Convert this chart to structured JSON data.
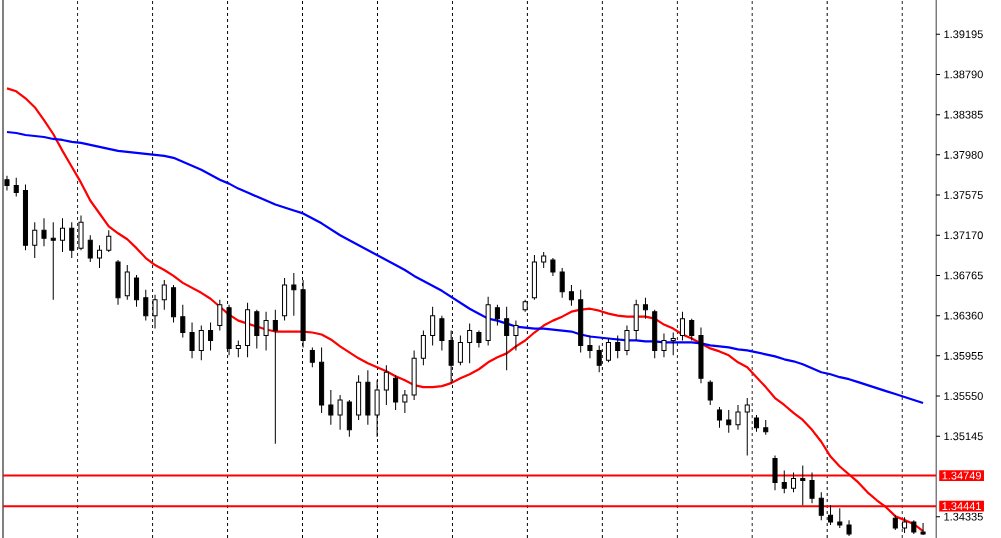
{
  "chart_data": {
    "type": "candlestick",
    "categories": [
      null,
      null,
      null,
      null,
      null,
      null,
      null,
      null,
      null,
      null,
      null,
      null,
      null,
      null,
      null,
      null,
      null,
      null,
      null,
      null,
      null,
      null,
      null,
      null,
      null,
      null,
      null,
      null,
      null,
      null,
      null,
      null,
      null,
      null,
      null,
      null,
      null,
      null,
      null,
      null,
      null,
      null,
      null,
      null,
      null,
      null,
      null,
      null,
      null,
      null,
      null,
      null,
      null,
      null,
      null,
      null,
      null,
      null,
      null,
      null,
      null,
      null,
      null,
      null,
      null,
      null,
      null,
      null,
      null,
      null,
      null,
      null,
      null,
      null,
      null,
      null,
      null,
      null,
      null,
      null,
      null,
      null,
      null,
      null,
      null,
      null,
      null,
      null,
      null,
      null,
      null,
      null,
      null,
      null,
      null,
      null,
      null,
      null,
      null,
      null
    ],
    "color": "#000000",
    "ohlc": [
      [
        1.3773,
        1.3777,
        1.3762,
        1.3767
      ],
      [
        1.3767,
        1.3775,
        1.3756,
        1.376
      ],
      [
        1.3762,
        1.3768,
        1.3702,
        1.3707
      ],
      [
        1.3707,
        1.373,
        1.3694,
        1.3722
      ],
      [
        1.3722,
        1.3734,
        1.3706,
        1.3714
      ],
      [
        1.3714,
        1.373,
        1.3652,
        1.3712
      ],
      [
        1.3712,
        1.3734,
        1.37,
        1.3724
      ],
      [
        1.3724,
        1.373,
        1.3694,
        1.3702
      ],
      [
        1.3704,
        1.3737,
        1.3702,
        1.373
      ],
      [
        1.3712,
        1.3717,
        1.369,
        1.3694
      ],
      [
        1.3694,
        1.3707,
        1.3684,
        1.3702
      ],
      [
        1.3702,
        1.3722,
        1.37,
        1.3716
      ],
      [
        1.369,
        1.3692,
        1.3647,
        1.3654
      ],
      [
        1.3656,
        1.3687,
        1.3652,
        1.368
      ],
      [
        1.3674,
        1.3677,
        1.3645,
        1.3652
      ],
      [
        1.3654,
        1.3662,
        1.3631,
        1.3636
      ],
      [
        1.3636,
        1.3657,
        1.3623,
        1.3652
      ],
      [
        1.3652,
        1.3672,
        1.3642,
        1.3667
      ],
      [
        1.3664,
        1.3667,
        1.3629,
        1.3635
      ],
      [
        1.3635,
        1.3647,
        1.3614,
        1.3619
      ],
      [
        1.3619,
        1.3629,
        1.3593,
        1.3601
      ],
      [
        1.3601,
        1.3626,
        1.3591,
        1.3621
      ],
      [
        1.3621,
        1.3629,
        1.3601,
        1.3611
      ],
      [
        1.3626,
        1.3652,
        1.3621,
        1.3647
      ],
      [
        1.3644,
        1.3647,
        1.3596,
        1.3603
      ],
      [
        1.3603,
        1.3611,
        1.3594,
        1.3606
      ],
      [
        1.3606,
        1.3649,
        1.3594,
        1.3642
      ],
      [
        1.364,
        1.3642,
        1.3603,
        1.3616
      ],
      [
        1.3616,
        1.364,
        1.3601,
        1.3631
      ],
      [
        1.3631,
        1.3642,
        1.3507,
        1.3621
      ],
      [
        1.3636,
        1.3674,
        1.3631,
        1.3667
      ],
      [
        1.3667,
        1.3679,
        1.3636,
        1.3662
      ],
      [
        1.3662,
        1.3672,
        1.3604,
        1.3611
      ],
      [
        1.3601,
        1.3604,
        1.3584,
        1.3589
      ],
      [
        1.3589,
        1.3604,
        1.3538,
        1.3546
      ],
      [
        1.3546,
        1.3561,
        1.3526,
        1.3536
      ],
      [
        1.3536,
        1.3556,
        1.3521,
        1.3551
      ],
      [
        1.3549,
        1.3551,
        1.3514,
        1.3521
      ],
      [
        1.3536,
        1.3576,
        1.3531,
        1.3569
      ],
      [
        1.3569,
        1.3581,
        1.3526,
        1.3536
      ],
      [
        1.3536,
        1.3571,
        1.3514,
        1.3561
      ],
      [
        1.3561,
        1.3586,
        1.3546,
        1.3579
      ],
      [
        1.3573,
        1.3576,
        1.3541,
        1.3549
      ],
      [
        1.3549,
        1.3561,
        1.3538,
        1.3556
      ],
      [
        1.3556,
        1.3601,
        1.3551,
        1.3593
      ],
      [
        1.3593,
        1.3621,
        1.3586,
        1.3616
      ],
      [
        1.3616,
        1.3645,
        1.3606,
        1.3636
      ],
      [
        1.3633,
        1.3636,
        1.3601,
        1.3611
      ],
      [
        1.3611,
        1.3621,
        1.3568,
        1.3586
      ],
      [
        1.3589,
        1.3616,
        1.3586,
        1.3609
      ],
      [
        1.3609,
        1.3628,
        1.3588,
        1.3621
      ],
      [
        1.3619,
        1.3621,
        1.3604,
        1.3609
      ],
      [
        1.3611,
        1.3655,
        1.3606,
        1.3647
      ],
      [
        1.3644,
        1.3647,
        1.3626,
        1.3633
      ],
      [
        1.3633,
        1.3645,
        1.3581,
        1.3616
      ],
      [
        1.3616,
        1.3631,
        1.3601,
        1.3626
      ],
      [
        1.3642,
        1.3652,
        1.364,
        1.365
      ],
      [
        1.3654,
        1.3697,
        1.3652,
        1.369
      ],
      [
        1.369,
        1.37,
        1.3684,
        1.3696
      ],
      [
        1.3692,
        1.3694,
        1.3676,
        1.368
      ],
      [
        1.368,
        1.3684,
        1.3654,
        1.366
      ],
      [
        1.366,
        1.3667,
        1.3646,
        1.3652
      ],
      [
        1.3652,
        1.3662,
        1.3599,
        1.3606
      ],
      [
        1.3606,
        1.3616,
        1.3593,
        1.3601
      ],
      [
        1.3601,
        1.3606,
        1.3579,
        1.3586
      ],
      [
        1.3591,
        1.3613,
        1.3589,
        1.3609
      ],
      [
        1.3609,
        1.3616,
        1.3593,
        1.3601
      ],
      [
        1.3601,
        1.3626,
        1.3596,
        1.3621
      ],
      [
        1.3621,
        1.3652,
        1.3611,
        1.3647
      ],
      [
        1.3647,
        1.3654,
        1.3633,
        1.3642
      ],
      [
        1.364,
        1.3642,
        1.3593,
        1.3601
      ],
      [
        1.3601,
        1.3618,
        1.3594,
        1.3611
      ],
      [
        1.3611,
        1.3619,
        1.3596,
        1.3613
      ],
      [
        1.3616,
        1.364,
        1.3611,
        1.3633
      ],
      [
        1.3631,
        1.3633,
        1.3611,
        1.3616
      ],
      [
        1.3616,
        1.3624,
        1.3568,
        1.3573
      ],
      [
        1.3569,
        1.3571,
        1.3546,
        1.3551
      ],
      [
        1.3541,
        1.3544,
        1.3523,
        1.3531
      ],
      [
        1.3531,
        1.3541,
        1.3518,
        1.3526
      ],
      [
        1.3526,
        1.3546,
        1.3521,
        1.3539
      ],
      [
        1.3539,
        1.3553,
        1.3495,
        1.3546
      ],
      [
        1.3533,
        1.3536,
        1.3519,
        1.3523
      ],
      [
        1.3523,
        1.3531,
        1.3516,
        1.3519
      ],
      [
        1.3492,
        1.3495,
        1.346,
        1.3468
      ],
      [
        1.3468,
        1.348,
        1.3457,
        1.3462
      ],
      [
        1.3462,
        1.3478,
        1.3458,
        1.3472
      ],
      [
        1.3472,
        1.3485,
        1.3445,
        1.347
      ],
      [
        1.347,
        1.3478,
        1.3447,
        1.3452
      ],
      [
        1.3452,
        1.3458,
        1.343,
        1.3435
      ],
      [
        1.3435,
        1.3445,
        1.3425,
        1.3428
      ],
      [
        1.3428,
        1.3442,
        1.3422,
        1.3425
      ],
      [
        1.3425,
        1.343,
        1.3414,
        1.3416
      ],
      null,
      null,
      null,
      null,
      [
        1.3432,
        1.3435,
        1.342,
        1.3422
      ],
      [
        1.3422,
        1.3433,
        1.3417,
        1.3428
      ],
      [
        1.3428,
        1.343,
        1.3416,
        1.3418
      ],
      [
        1.3418,
        1.3427,
        1.3415,
        1.3416
      ]
    ],
    "series": [
      {
        "type": "line",
        "color": "#ff0000",
        "values": [
          1.3865,
          1.3862,
          1.3855,
          1.3846,
          1.3833,
          1.3819,
          1.3802,
          1.3786,
          1.377,
          1.3752,
          1.3739,
          1.3726,
          1.3719,
          1.3713,
          1.3704,
          1.3694,
          1.3687,
          1.3682,
          1.3676,
          1.3669,
          1.3664,
          1.3659,
          1.3653,
          1.3645,
          1.3637,
          1.3631,
          1.3628,
          1.3625,
          1.3622,
          1.362,
          1.362,
          1.362,
          1.362,
          1.3619,
          1.3617,
          1.3612,
          1.3605,
          1.3599,
          1.3593,
          1.3588,
          1.3584,
          1.358,
          1.3575,
          1.3571,
          1.3566,
          1.3564,
          1.3564,
          1.3565,
          1.3568,
          1.3573,
          1.3577,
          1.3582,
          1.3589,
          1.3594,
          1.3598,
          1.3605,
          1.3611,
          1.3619,
          1.3626,
          1.3631,
          1.3635,
          1.364,
          1.3642,
          1.3643,
          1.3641,
          1.3638,
          1.3636,
          1.3635,
          1.3635,
          1.3635,
          1.3633,
          1.3627,
          1.3623,
          1.3617,
          1.3613,
          1.3608,
          1.3603,
          1.36,
          1.3596,
          1.3589,
          1.3584,
          1.3574,
          1.3564,
          1.3553,
          1.3546,
          1.3538,
          1.3531,
          1.3521,
          1.3509,
          1.3494,
          1.3484,
          1.3476,
          1.3468,
          1.3458,
          1.345,
          1.3443,
          1.3434,
          1.343,
          1.3426,
          1.3419
        ]
      },
      {
        "type": "line",
        "color": "#0000ff",
        "values": [
          1.3821,
          1.382,
          1.3818,
          1.3817,
          1.3816,
          1.3814,
          1.3813,
          1.3811,
          1.381,
          1.3808,
          1.3806,
          1.3804,
          1.3802,
          1.3801,
          1.38,
          1.3799,
          1.3798,
          1.3797,
          1.3795,
          1.3791,
          1.3787,
          1.3783,
          1.3778,
          1.3773,
          1.3769,
          1.3764,
          1.376,
          1.3756,
          1.3752,
          1.3748,
          1.3745,
          1.3742,
          1.3739,
          1.3734,
          1.3729,
          1.3723,
          1.3717,
          1.3712,
          1.3707,
          1.3702,
          1.3697,
          1.3692,
          1.3687,
          1.3682,
          1.3676,
          1.3671,
          1.3666,
          1.3661,
          1.3655,
          1.3649,
          1.3643,
          1.3638,
          1.3633,
          1.3631,
          1.3628,
          1.3625,
          1.3624,
          1.3623,
          1.3623,
          1.3622,
          1.3621,
          1.362,
          1.3617,
          1.3615,
          1.3614,
          1.3613,
          1.3612,
          1.3611,
          1.3611,
          1.361,
          1.361,
          1.3609,
          1.3609,
          1.3609,
          1.3609,
          1.3608,
          1.3606,
          1.3605,
          1.3604,
          1.3602,
          1.3601,
          1.3599,
          1.3597,
          1.3595,
          1.3592,
          1.359,
          1.3587,
          1.3583,
          1.3579,
          1.3577,
          1.3574,
          1.3572,
          1.3569,
          1.3566,
          1.3563,
          1.356,
          1.3557,
          1.3554,
          1.3551,
          1.3548
        ]
      }
    ],
    "ylim": [
      1.3412,
      1.3954
    ],
    "yticks": [
      1.34335,
      1.35145,
      {
        "value": 1.3555,
        "label": "1.35550"
      },
      1.35955,
      {
        "value": 1.3636,
        "label": "1.36360"
      },
      1.36765,
      {
        "value": 1.3717,
        "label": "1.37170"
      },
      1.37575,
      {
        "value": 1.3798,
        "label": "1.37980"
      },
      1.38385,
      {
        "value": 1.3879,
        "label": "1.38790"
      },
      1.39195
    ],
    "tick_labels": "y",
    "grid": "x",
    "ref_lines": [
      {
        "axis": "y",
        "value": 1.34749,
        "label": "1.34749",
        "color": "#ff0000"
      },
      {
        "axis": "y",
        "value": 1.34441,
        "label": "1.34441",
        "color": "#ff0000"
      }
    ]
  }
}
